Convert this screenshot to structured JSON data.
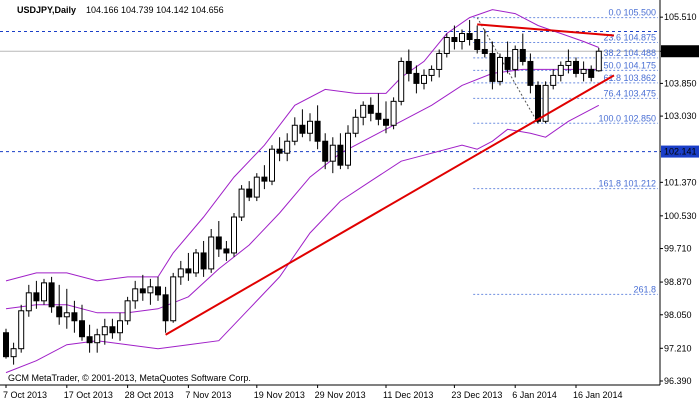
{
  "header": {
    "symbol": "USDJPY,Daily",
    "ohlc": "104.166 104.739 104.142 104.656"
  },
  "footer": {
    "copyright": "GCM MetaTrader, © 2001-2013, MetaQuotes Software Corp."
  },
  "colors": {
    "background": "#ffffff",
    "candle": "#000000",
    "bands": "#a020c8",
    "trendline": "#e00000",
    "level_line": "#1a3ec8",
    "fib_text": "#4a6fd4",
    "current_price_bg": "#000000"
  },
  "chart_data": {
    "type": "candlestick",
    "title": "USDJPY,Daily",
    "ylim": [
      96.39,
      105.84
    ],
    "y_ticks": [
      "105.510",
      "104.656",
      "103.850",
      "103.030",
      "102.141",
      "101.370",
      "100.530",
      "99.710",
      "98.870",
      "98.050",
      "97.210",
      "96.390"
    ],
    "x_ticks": [
      "7 Oct 2013",
      "17 Oct 2013",
      "28 Oct 2013",
      "7 Nov 2013",
      "19 Nov 2013",
      "29 Nov 2013",
      "11 Dec 2013",
      "23 Dec 2013",
      "6 Jan 2014",
      "16 Jan 2014"
    ],
    "candles": [
      {
        "o": 97.6,
        "h": 97.7,
        "l": 96.95,
        "c": 97.0
      },
      {
        "o": 97.0,
        "h": 97.35,
        "l": 96.8,
        "c": 97.2
      },
      {
        "o": 97.2,
        "h": 98.3,
        "l": 97.1,
        "c": 98.15
      },
      {
        "o": 98.15,
        "h": 98.8,
        "l": 98.0,
        "c": 98.6
      },
      {
        "o": 98.6,
        "h": 98.9,
        "l": 98.2,
        "c": 98.4
      },
      {
        "o": 98.4,
        "h": 98.95,
        "l": 98.3,
        "c": 98.85
      },
      {
        "o": 98.85,
        "h": 99.0,
        "l": 98.1,
        "c": 98.25
      },
      {
        "o": 98.25,
        "h": 98.8,
        "l": 97.8,
        "c": 98.0
      },
      {
        "o": 98.0,
        "h": 98.7,
        "l": 97.7,
        "c": 98.1
      },
      {
        "o": 98.1,
        "h": 98.4,
        "l": 97.6,
        "c": 97.9
      },
      {
        "o": 97.9,
        "h": 98.3,
        "l": 97.4,
        "c": 97.5
      },
      {
        "o": 97.5,
        "h": 97.8,
        "l": 97.1,
        "c": 97.35
      },
      {
        "o": 97.35,
        "h": 97.7,
        "l": 97.1,
        "c": 97.55
      },
      {
        "o": 97.55,
        "h": 97.95,
        "l": 97.3,
        "c": 97.75
      },
      {
        "o": 97.75,
        "h": 97.95,
        "l": 97.45,
        "c": 97.6
      },
      {
        "o": 97.6,
        "h": 98.1,
        "l": 97.4,
        "c": 97.9
      },
      {
        "o": 97.9,
        "h": 98.5,
        "l": 97.8,
        "c": 98.4
      },
      {
        "o": 98.4,
        "h": 98.9,
        "l": 98.2,
        "c": 98.7
      },
      {
        "o": 98.7,
        "h": 99.05,
        "l": 98.4,
        "c": 98.6
      },
      {
        "o": 98.6,
        "h": 98.95,
        "l": 98.3,
        "c": 98.75
      },
      {
        "o": 98.75,
        "h": 99.0,
        "l": 98.4,
        "c": 98.55
      },
      {
        "o": 98.55,
        "h": 98.75,
        "l": 97.6,
        "c": 97.9
      },
      {
        "o": 97.9,
        "h": 99.1,
        "l": 97.85,
        "c": 99.0
      },
      {
        "o": 99.0,
        "h": 99.4,
        "l": 98.8,
        "c": 99.2
      },
      {
        "o": 99.2,
        "h": 99.6,
        "l": 98.9,
        "c": 99.1
      },
      {
        "o": 99.1,
        "h": 99.7,
        "l": 99.0,
        "c": 99.6
      },
      {
        "o": 99.6,
        "h": 99.9,
        "l": 99.0,
        "c": 99.2
      },
      {
        "o": 99.2,
        "h": 100.2,
        "l": 99.1,
        "c": 100.0
      },
      {
        "o": 100.0,
        "h": 100.4,
        "l": 99.5,
        "c": 99.7
      },
      {
        "o": 99.7,
        "h": 99.9,
        "l": 99.4,
        "c": 99.6
      },
      {
        "o": 99.6,
        "h": 100.6,
        "l": 99.5,
        "c": 100.5
      },
      {
        "o": 100.5,
        "h": 101.3,
        "l": 100.4,
        "c": 101.2
      },
      {
        "o": 101.2,
        "h": 101.4,
        "l": 100.9,
        "c": 101.0
      },
      {
        "o": 101.0,
        "h": 101.6,
        "l": 100.9,
        "c": 101.5
      },
      {
        "o": 101.5,
        "h": 101.8,
        "l": 101.2,
        "c": 101.4
      },
      {
        "o": 101.4,
        "h": 102.3,
        "l": 101.3,
        "c": 102.2
      },
      {
        "o": 102.2,
        "h": 102.5,
        "l": 101.9,
        "c": 102.1
      },
      {
        "o": 102.1,
        "h": 102.6,
        "l": 101.9,
        "c": 102.4
      },
      {
        "o": 102.4,
        "h": 103.0,
        "l": 102.3,
        "c": 102.8
      },
      {
        "o": 102.8,
        "h": 103.2,
        "l": 102.5,
        "c": 102.6
      },
      {
        "o": 102.6,
        "h": 103.1,
        "l": 102.4,
        "c": 102.9
      },
      {
        "o": 102.9,
        "h": 103.3,
        "l": 102.2,
        "c": 102.4
      },
      {
        "o": 102.4,
        "h": 102.6,
        "l": 101.7,
        "c": 101.9
      },
      {
        "o": 101.9,
        "h": 102.5,
        "l": 101.6,
        "c": 102.3
      },
      {
        "o": 102.3,
        "h": 102.6,
        "l": 101.7,
        "c": 101.8
      },
      {
        "o": 101.8,
        "h": 102.8,
        "l": 101.7,
        "c": 102.6
      },
      {
        "o": 102.6,
        "h": 103.2,
        "l": 102.5,
        "c": 103.0
      },
      {
        "o": 103.0,
        "h": 103.4,
        "l": 102.8,
        "c": 103.3
      },
      {
        "o": 103.3,
        "h": 103.5,
        "l": 102.9,
        "c": 103.1
      },
      {
        "o": 103.1,
        "h": 103.6,
        "l": 102.8,
        "c": 102.95
      },
      {
        "o": 102.95,
        "h": 103.4,
        "l": 102.6,
        "c": 102.8
      },
      {
        "o": 102.8,
        "h": 103.5,
        "l": 102.7,
        "c": 103.4
      },
      {
        "o": 103.4,
        "h": 104.5,
        "l": 103.3,
        "c": 104.4
      },
      {
        "o": 104.4,
        "h": 104.7,
        "l": 103.9,
        "c": 104.1
      },
      {
        "o": 104.1,
        "h": 104.3,
        "l": 103.6,
        "c": 103.85
      },
      {
        "o": 103.85,
        "h": 104.2,
        "l": 103.7,
        "c": 104.05
      },
      {
        "o": 104.05,
        "h": 104.3,
        "l": 103.9,
        "c": 104.2
      },
      {
        "o": 104.2,
        "h": 104.7,
        "l": 104.0,
        "c": 104.6
      },
      {
        "o": 104.6,
        "h": 105.1,
        "l": 104.5,
        "c": 105.0
      },
      {
        "o": 105.0,
        "h": 105.3,
        "l": 104.7,
        "c": 104.9
      },
      {
        "o": 104.9,
        "h": 105.2,
        "l": 104.7,
        "c": 105.1
      },
      {
        "o": 105.1,
        "h": 105.44,
        "l": 104.8,
        "c": 104.95
      },
      {
        "o": 104.95,
        "h": 105.3,
        "l": 104.6,
        "c": 104.7
      },
      {
        "o": 104.7,
        "h": 105.2,
        "l": 104.5,
        "c": 104.6
      },
      {
        "o": 104.6,
        "h": 104.9,
        "l": 103.7,
        "c": 103.9
      },
      {
        "o": 103.9,
        "h": 104.6,
        "l": 103.8,
        "c": 104.5
      },
      {
        "o": 104.5,
        "h": 104.9,
        "l": 104.1,
        "c": 104.2
      },
      {
        "o": 104.2,
        "h": 104.8,
        "l": 104.0,
        "c": 104.7
      },
      {
        "o": 104.7,
        "h": 105.1,
        "l": 104.3,
        "c": 104.4
      },
      {
        "o": 104.4,
        "h": 104.6,
        "l": 103.6,
        "c": 103.8
      },
      {
        "o": 103.8,
        "h": 103.9,
        "l": 102.85,
        "c": 102.9
      },
      {
        "o": 102.9,
        "h": 103.9,
        "l": 102.85,
        "c": 103.8
      },
      {
        "o": 103.8,
        "h": 104.2,
        "l": 103.7,
        "c": 104.05
      },
      {
        "o": 104.05,
        "h": 104.4,
        "l": 103.9,
        "c": 104.3
      },
      {
        "o": 104.3,
        "h": 104.7,
        "l": 104.1,
        "c": 104.4
      },
      {
        "o": 104.4,
        "h": 104.5,
        "l": 104.0,
        "c": 104.1
      },
      {
        "o": 104.1,
        "h": 104.4,
        "l": 103.9,
        "c": 104.2
      },
      {
        "o": 104.2,
        "h": 104.3,
        "l": 103.9,
        "c": 104.0
      },
      {
        "o": 104.166,
        "h": 104.739,
        "l": 104.142,
        "c": 104.656
      }
    ],
    "bollinger": {
      "upper": [
        [
          0,
          98.9
        ],
        [
          4,
          99.1
        ],
        [
          8,
          99.1
        ],
        [
          12,
          98.9
        ],
        [
          16,
          99.0
        ],
        [
          20,
          99.0
        ],
        [
          22,
          99.6
        ],
        [
          26,
          100.5
        ],
        [
          30,
          101.5
        ],
        [
          34,
          102.3
        ],
        [
          38,
          103.3
        ],
        [
          42,
          103.7
        ],
        [
          46,
          103.6
        ],
        [
          50,
          103.6
        ],
        [
          52,
          104.0
        ],
        [
          55,
          104.4
        ],
        [
          58,
          105.1
        ],
        [
          61,
          105.5
        ],
        [
          64,
          105.7
        ],
        [
          67,
          105.6
        ],
        [
          70,
          105.3
        ],
        [
          73,
          105.1
        ],
        [
          76,
          104.9
        ],
        [
          78,
          104.75
        ]
      ],
      "middle": [
        [
          0,
          98.2
        ],
        [
          4,
          98.3
        ],
        [
          8,
          98.3
        ],
        [
          12,
          98.1
        ],
        [
          16,
          98.1
        ],
        [
          20,
          98.2
        ],
        [
          24,
          98.5
        ],
        [
          28,
          99.2
        ],
        [
          32,
          99.8
        ],
        [
          36,
          100.6
        ],
        [
          40,
          101.5
        ],
        [
          44,
          102.1
        ],
        [
          48,
          102.5
        ],
        [
          52,
          102.9
        ],
        [
          56,
          103.3
        ],
        [
          60,
          103.8
        ],
        [
          64,
          104.1
        ],
        [
          68,
          104.2
        ],
        [
          72,
          104.2
        ],
        [
          76,
          104.2
        ],
        [
          78,
          104.2
        ]
      ],
      "lower": [
        [
          0,
          96.6
        ],
        [
          4,
          96.9
        ],
        [
          8,
          97.3
        ],
        [
          12,
          97.4
        ],
        [
          16,
          97.3
        ],
        [
          20,
          97.2
        ],
        [
          24,
          97.3
        ],
        [
          28,
          97.4
        ],
        [
          32,
          98.2
        ],
        [
          36,
          99.0
        ],
        [
          40,
          100.1
        ],
        [
          44,
          100.9
        ],
        [
          48,
          101.4
        ],
        [
          52,
          101.9
        ],
        [
          56,
          102.1
        ],
        [
          60,
          102.3
        ],
        [
          62,
          102.2
        ],
        [
          64,
          102.4
        ],
        [
          66,
          102.7
        ],
        [
          69,
          102.6
        ],
        [
          71,
          102.5
        ],
        [
          74,
          102.9
        ],
        [
          76,
          103.1
        ],
        [
          78,
          103.3
        ]
      ]
    },
    "trendlines": [
      {
        "from": {
          "i": 21,
          "p": 97.55
        },
        "to": {
          "i": 80,
          "p": 104.05
        }
      },
      {
        "from": {
          "i": 62,
          "p": 105.33
        },
        "to": {
          "i": 80,
          "p": 105.05
        }
      }
    ],
    "fib_retracement": {
      "from": {
        "i": 62,
        "p": 105.5
      },
      "to": {
        "i": 70,
        "p": 102.85
      },
      "levels": [
        {
          "label": "0.0 105.500",
          "price": 105.5
        },
        {
          "label": "23.6 104.875",
          "price": 104.875
        },
        {
          "label": "38.2 104.488",
          "price": 104.488
        },
        {
          "label": "50.0 104.175",
          "price": 104.175
        },
        {
          "label": "61.8 103.862",
          "price": 103.862
        },
        {
          "label": "76.4 103.475",
          "price": 103.475
        },
        {
          "label": "100.0 102.850",
          "price": 102.85
        },
        {
          "label": "161.8 101.212",
          "price": 101.212
        },
        {
          "label": "261.8",
          "price": 98.562
        }
      ]
    },
    "horizontal_levels": [
      {
        "label": "105.150",
        "price": 105.15
      },
      {
        "label": "102.141",
        "price": 102.141
      }
    ],
    "gray_level": 104.656,
    "current_price": {
      "label": "104.656",
      "price": 104.656
    }
  }
}
